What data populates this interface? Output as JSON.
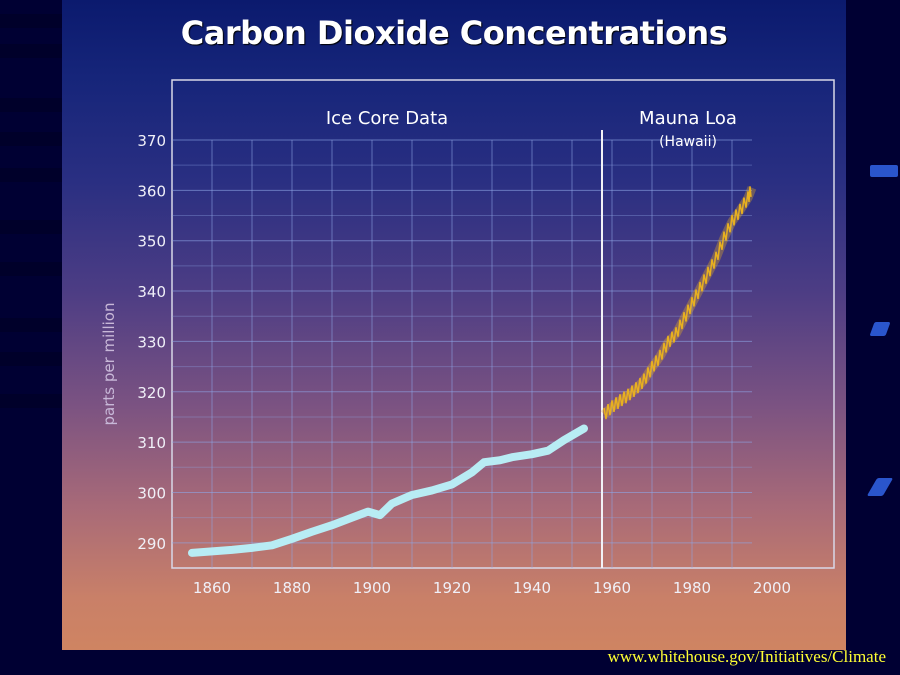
{
  "slide": {
    "url": "www.whitehouse.gov/Initiatives/Climate"
  },
  "chart_data": {
    "type": "line",
    "title": "Carbon Dioxide Concentrations",
    "ylabel": "parts per million",
    "xlabel": "",
    "xlim": [
      1850,
      2000
    ],
    "ylim": [
      285,
      370
    ],
    "x_ticks": [
      1860,
      1880,
      1900,
      1920,
      1940,
      1960,
      1980,
      2000
    ],
    "y_ticks": [
      290,
      300,
      310,
      320,
      330,
      340,
      350,
      360,
      370
    ],
    "grid": true,
    "annotations": [
      {
        "text": "Ice Core Data"
      },
      {
        "text": "Mauna Loa"
      },
      {
        "text": "(Hawaii)"
      }
    ],
    "divider_x": 1958,
    "series": [
      {
        "color": "#b8ecf4",
        "x": [
          1855,
          1860,
          1865,
          1870,
          1875,
          1880,
          1885,
          1890,
          1895,
          1899,
          1902,
          1905,
          1910,
          1915,
          1920,
          1925,
          1928,
          1932,
          1935,
          1940,
          1944,
          1948,
          1953
        ],
        "y": [
          288,
          288.3,
          288.6,
          289,
          289.5,
          290.8,
          292.2,
          293.5,
          295,
          296.2,
          295.5,
          297.8,
          299.5,
          300.4,
          301.6,
          304,
          306,
          306.4,
          307,
          307.6,
          308.3,
          310.4,
          312.7
        ]
      },
      {
        "color": "#e8b020",
        "x": [
          1958,
          1960,
          1962,
          1964,
          1966,
          1968,
          1970,
          1972,
          1974,
          1976,
          1978,
          1980,
          1982,
          1984,
          1986,
          1988,
          1990,
          1992,
          1994,
          1995
        ],
        "y": [
          315.5,
          317,
          318.2,
          319.3,
          320.6,
          322.3,
          324.8,
          327,
          329.8,
          331.5,
          334.5,
          337.5,
          340.5,
          343.5,
          346.5,
          350.5,
          353.8,
          356,
          358.5,
          360.5
        ]
      }
    ]
  }
}
